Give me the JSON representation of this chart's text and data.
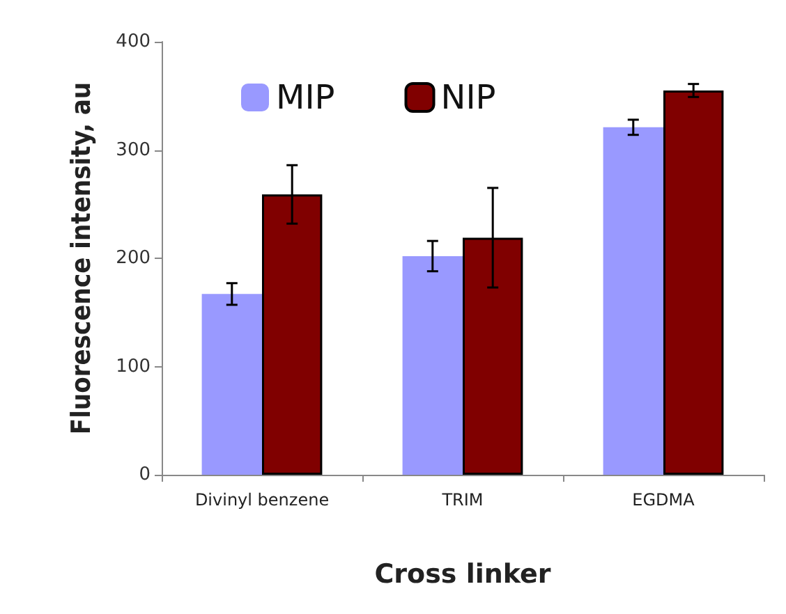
{
  "chart_data": {
    "type": "bar",
    "xlabel": "Cross linker",
    "ylabel": "Fluorescence intensity, au",
    "categories": [
      "Divinyl benzene",
      "TRIM",
      "EGDMA"
    ],
    "series": [
      {
        "name": "MIP",
        "color": "#9999ff",
        "values": [
          167,
          202,
          321
        ],
        "errors": [
          10,
          14,
          7
        ]
      },
      {
        "name": "NIP",
        "color": "#800000",
        "values": [
          259,
          219,
          355
        ],
        "errors": [
          27,
          46,
          6
        ]
      }
    ],
    "ylim": [
      0,
      400
    ],
    "yticks": [
      0,
      100,
      200,
      300,
      400
    ],
    "grid": false,
    "legend": "top"
  }
}
